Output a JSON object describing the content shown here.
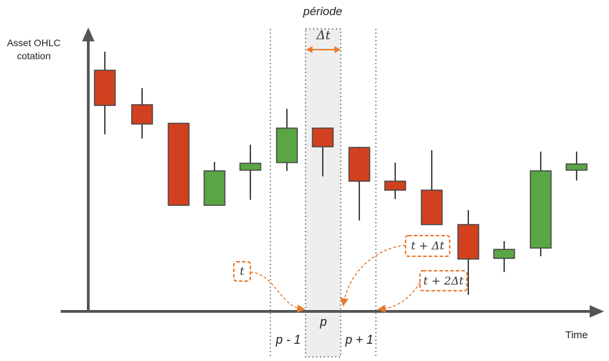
{
  "labels": {
    "title": "période",
    "y_axis": [
      "Asset OHLC",
      "cotation"
    ],
    "x_axis": "Time",
    "delta": "Δt",
    "p": "p",
    "p_minus_1": "p - 1",
    "p_plus_1": "p + 1",
    "t": "t",
    "t_plus_delta": "t + Δt",
    "t_plus_2delta": "t + 2Δt"
  },
  "colors": {
    "up": "#5aa544",
    "down": "#d2411f",
    "axis": "#555555",
    "accent": "#e8782b",
    "band": "#eeeeee"
  },
  "candles": [
    {
      "dir": "down"
    },
    {
      "dir": "down"
    },
    {
      "dir": "down"
    },
    {
      "dir": "up"
    },
    {
      "dir": "up"
    },
    {
      "dir": "up"
    },
    {
      "dir": "down"
    },
    {
      "dir": "down"
    },
    {
      "dir": "down"
    },
    {
      "dir": "down"
    },
    {
      "dir": "down"
    },
    {
      "dir": "up"
    },
    {
      "dir": "up"
    },
    {
      "dir": "up"
    }
  ]
}
